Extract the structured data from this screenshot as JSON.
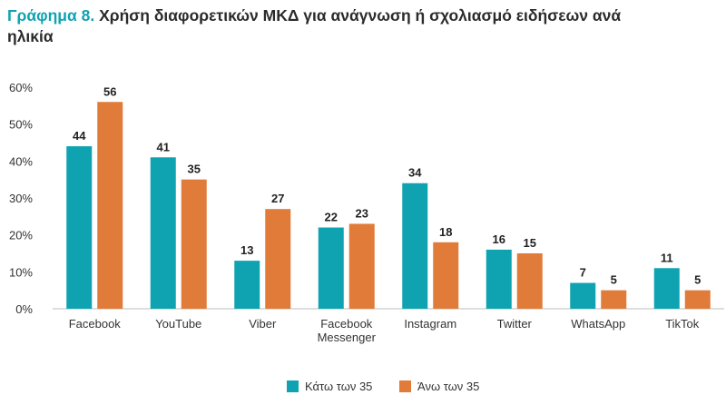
{
  "title": {
    "prefix": "Γράφημα 8.",
    "text": "Χρήση διαφορετικών ΜΚΔ για ανάγνωση ή σχολιασμό ειδήσεων ανά ηλικία"
  },
  "colors": {
    "under35": "#0fa3b1",
    "over35": "#e07b39",
    "axis": "#bdbdbd",
    "title_accent": "#0fa3b1"
  },
  "chart_data": {
    "type": "bar",
    "categories": [
      [
        "Facebook"
      ],
      [
        "YouTube"
      ],
      [
        "Viber"
      ],
      [
        "Facebook",
        "Messenger"
      ],
      [
        "Instagram"
      ],
      [
        "Twitter"
      ],
      [
        "WhatsApp"
      ],
      [
        "TikTok"
      ]
    ],
    "series": [
      {
        "name": "Κάτω των 35",
        "values": [
          44,
          41,
          13,
          22,
          34,
          16,
          7,
          11
        ]
      },
      {
        "name": "Άνω των 35",
        "values": [
          56,
          35,
          27,
          23,
          18,
          15,
          5,
          5
        ]
      }
    ],
    "yticks": [
      "0%",
      "10%",
      "20%",
      "30%",
      "40%",
      "50%",
      "60%"
    ],
    "ylim": [
      0,
      60
    ],
    "grid": false,
    "legend_position": "bottom-center"
  }
}
